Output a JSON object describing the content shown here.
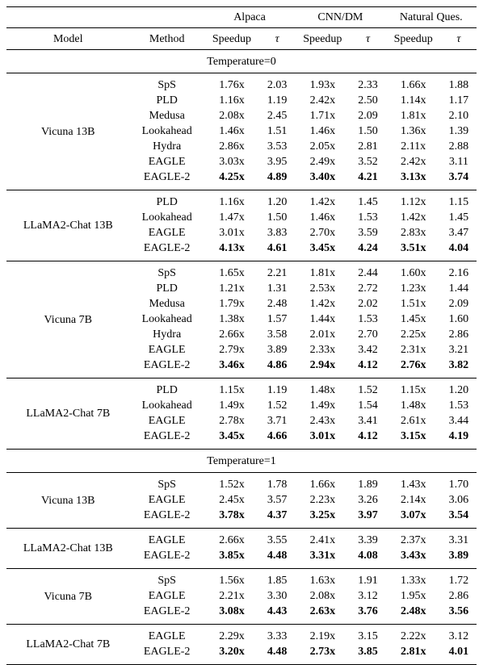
{
  "header": {
    "datasets": [
      "Alpaca",
      "CNN/DM",
      "Natural Ques."
    ],
    "model_label": "Model",
    "method_label": "Method",
    "speedup_label": "Speedup",
    "tau_label": "τ"
  },
  "sections": [
    {
      "label": "Temperature=0",
      "groups": [
        {
          "model": "Vicuna 13B",
          "rows": [
            {
              "method": "SpS",
              "vals": [
                "1.76x",
                "2.03",
                "1.93x",
                "2.33",
                "1.66x",
                "1.88"
              ],
              "bold": false
            },
            {
              "method": "PLD",
              "vals": [
                "1.16x",
                "1.19",
                "2.42x",
                "2.50",
                "1.14x",
                "1.17"
              ],
              "bold": false
            },
            {
              "method": "Medusa",
              "vals": [
                "2.08x",
                "2.45",
                "1.71x",
                "2.09",
                "1.81x",
                "2.10"
              ],
              "bold": false
            },
            {
              "method": "Lookahead",
              "vals": [
                "1.46x",
                "1.51",
                "1.46x",
                "1.50",
                "1.36x",
                "1.39"
              ],
              "bold": false
            },
            {
              "method": "Hydra",
              "vals": [
                "2.86x",
                "3.53",
                "2.05x",
                "2.81",
                "2.11x",
                "2.88"
              ],
              "bold": false
            },
            {
              "method": "EAGLE",
              "vals": [
                "3.03x",
                "3.95",
                "2.49x",
                "3.52",
                "2.42x",
                "3.11"
              ],
              "bold": false
            },
            {
              "method": "EAGLE-2",
              "vals": [
                "4.25x",
                "4.89",
                "3.40x",
                "4.21",
                "3.13x",
                "3.74"
              ],
              "bold": true
            }
          ]
        },
        {
          "model": "LLaMA2-Chat 13B",
          "rows": [
            {
              "method": "PLD",
              "vals": [
                "1.16x",
                "1.20",
                "1.42x",
                "1.45",
                "1.12x",
                "1.15"
              ],
              "bold": false
            },
            {
              "method": "Lookahead",
              "vals": [
                "1.47x",
                "1.50",
                "1.46x",
                "1.53",
                "1.42x",
                "1.45"
              ],
              "bold": false
            },
            {
              "method": "EAGLE",
              "vals": [
                "3.01x",
                "3.83",
                "2.70x",
                "3.59",
                "2.83x",
                "3.47"
              ],
              "bold": false
            },
            {
              "method": "EAGLE-2",
              "vals": [
                "4.13x",
                "4.61",
                "3.45x",
                "4.24",
                "3.51x",
                "4.04"
              ],
              "bold": true
            }
          ]
        },
        {
          "model": "Vicuna 7B",
          "rows": [
            {
              "method": "SpS",
              "vals": [
                "1.65x",
                "2.21",
                "1.81x",
                "2.44",
                "1.60x",
                "2.16"
              ],
              "bold": false
            },
            {
              "method": "PLD",
              "vals": [
                "1.21x",
                "1.31",
                "2.53x",
                "2.72",
                "1.23x",
                "1.44"
              ],
              "bold": false
            },
            {
              "method": "Medusa",
              "vals": [
                "1.79x",
                "2.48",
                "1.42x",
                "2.02",
                "1.51x",
                "2.09"
              ],
              "bold": false
            },
            {
              "method": "Lookahead",
              "vals": [
                "1.38x",
                "1.57",
                "1.44x",
                "1.53",
                "1.45x",
                "1.60"
              ],
              "bold": false
            },
            {
              "method": "Hydra",
              "vals": [
                "2.66x",
                "3.58",
                "2.01x",
                "2.70",
                "2.25x",
                "2.86"
              ],
              "bold": false
            },
            {
              "method": "EAGLE",
              "vals": [
                "2.79x",
                "3.89",
                "2.33x",
                "3.42",
                "2.31x",
                "3.21"
              ],
              "bold": false
            },
            {
              "method": "EAGLE-2",
              "vals": [
                "3.46x",
                "4.86",
                "2.94x",
                "4.12",
                "2.76x",
                "3.82"
              ],
              "bold": true
            }
          ]
        },
        {
          "model": "LLaMA2-Chat 7B",
          "rows": [
            {
              "method": "PLD",
              "vals": [
                "1.15x",
                "1.19",
                "1.48x",
                "1.52",
                "1.15x",
                "1.20"
              ],
              "bold": false
            },
            {
              "method": "Lookahead",
              "vals": [
                "1.49x",
                "1.52",
                "1.49x",
                "1.54",
                "1.48x",
                "1.53"
              ],
              "bold": false
            },
            {
              "method": "EAGLE",
              "vals": [
                "2.78x",
                "3.71",
                "2.43x",
                "3.41",
                "2.61x",
                "3.44"
              ],
              "bold": false
            },
            {
              "method": "EAGLE-2",
              "vals": [
                "3.45x",
                "4.66",
                "3.01x",
                "4.12",
                "3.15x",
                "4.19"
              ],
              "bold": true
            }
          ]
        }
      ]
    },
    {
      "label": "Temperature=1",
      "groups": [
        {
          "model": "Vicuna 13B",
          "rows": [
            {
              "method": "SpS",
              "vals": [
                "1.52x",
                "1.78",
                "1.66x",
                "1.89",
                "1.43x",
                "1.70"
              ],
              "bold": false
            },
            {
              "method": "EAGLE",
              "vals": [
                "2.45x",
                "3.57",
                "2.23x",
                "3.26",
                "2.14x",
                "3.06"
              ],
              "bold": false
            },
            {
              "method": "EAGLE-2",
              "vals": [
                "3.78x",
                "4.37",
                "3.25x",
                "3.97",
                "3.07x",
                "3.54"
              ],
              "bold": true
            }
          ]
        },
        {
          "model": "LLaMA2-Chat 13B",
          "rows": [
            {
              "method": "EAGLE",
              "vals": [
                "2.66x",
                "3.55",
                "2.41x",
                "3.39",
                "2.37x",
                "3.31"
              ],
              "bold": false
            },
            {
              "method": "EAGLE-2",
              "vals": [
                "3.85x",
                "4.48",
                "3.31x",
                "4.08",
                "3.43x",
                "3.89"
              ],
              "bold": true
            }
          ]
        },
        {
          "model": "Vicuna 7B",
          "rows": [
            {
              "method": "SpS",
              "vals": [
                "1.56x",
                "1.85",
                "1.63x",
                "1.91",
                "1.33x",
                "1.72"
              ],
              "bold": false
            },
            {
              "method": "EAGLE",
              "vals": [
                "2.21x",
                "3.30",
                "2.08x",
                "3.12",
                "1.95x",
                "2.86"
              ],
              "bold": false
            },
            {
              "method": "EAGLE-2",
              "vals": [
                "3.08x",
                "4.43",
                "2.63x",
                "3.76",
                "2.48x",
                "3.56"
              ],
              "bold": true
            }
          ]
        },
        {
          "model": "LLaMA2-Chat 7B",
          "rows": [
            {
              "method": "EAGLE",
              "vals": [
                "2.29x",
                "3.33",
                "2.19x",
                "3.15",
                "2.22x",
                "3.12"
              ],
              "bold": false
            },
            {
              "method": "EAGLE-2",
              "vals": [
                "3.20x",
                "4.48",
                "2.73x",
                "3.85",
                "2.81x",
                "4.01"
              ],
              "bold": true
            }
          ]
        }
      ]
    }
  ]
}
